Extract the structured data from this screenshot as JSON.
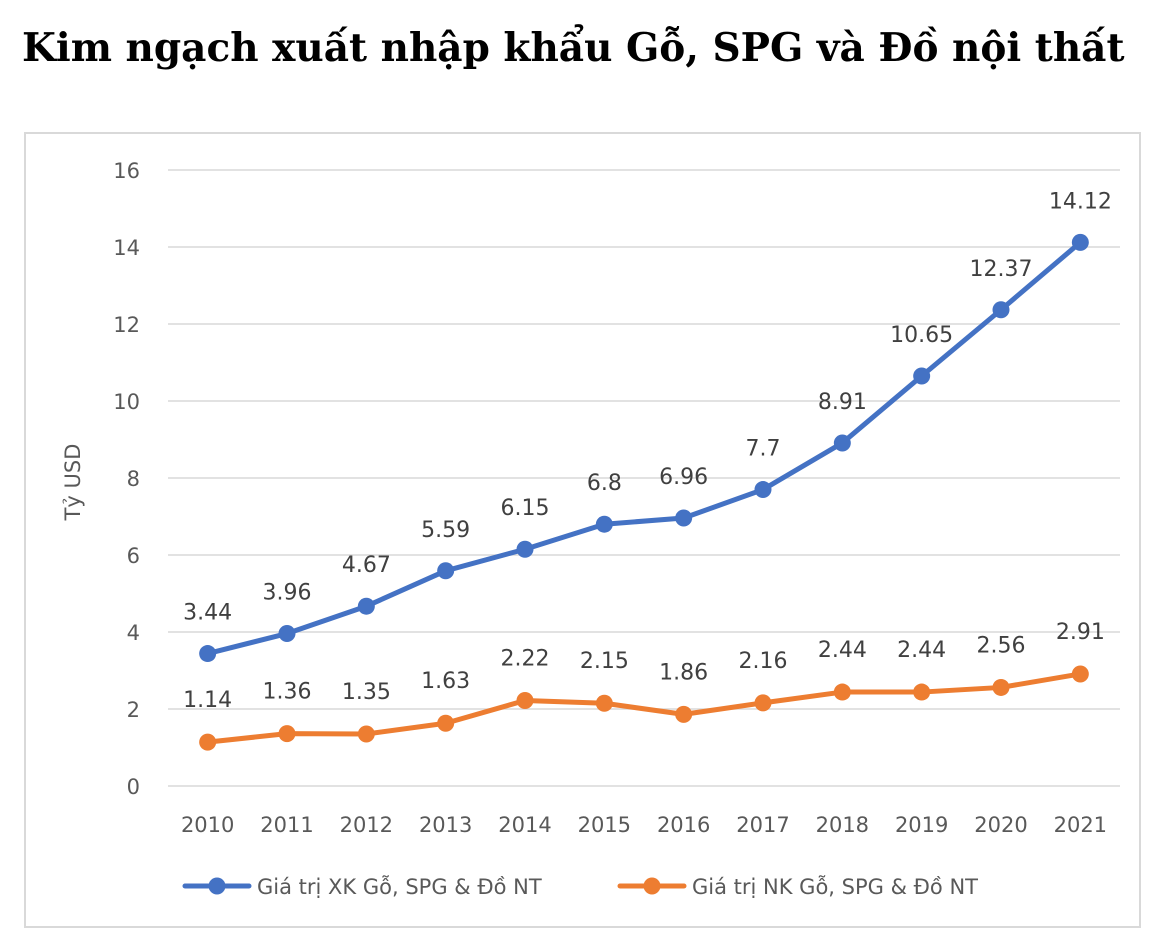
{
  "page": {
    "title": "Kim ngạch xuất nhập khẩu Gỗ, SPG và Đồ nội thất"
  },
  "chart_data": {
    "type": "line",
    "title": "",
    "xlabel": "",
    "ylabel": "Tỷ USD",
    "ylim": [
      0,
      16
    ],
    "yticks": [
      0,
      2,
      4,
      6,
      8,
      10,
      12,
      14,
      16
    ],
    "grid": true,
    "legend_position": "bottom",
    "categories": [
      "2010",
      "2011",
      "2012",
      "2013",
      "2014",
      "2015",
      "2016",
      "2017",
      "2018",
      "2019",
      "2020",
      "2021"
    ],
    "series": [
      {
        "name": "Giá trị XK Gỗ, SPG & Đồ NT",
        "color": "#4472c4",
        "values": [
          3.44,
          3.96,
          4.67,
          5.59,
          6.15,
          6.8,
          6.96,
          7.7,
          8.91,
          10.65,
          12.37,
          14.12
        ],
        "labels": [
          "3.44",
          "3.96",
          "4.67",
          "5.59",
          "6.15",
          "6.8",
          "6.96",
          "7.7",
          "8.91",
          "10.65",
          "12.37",
          "14.12"
        ]
      },
      {
        "name": "Giá trị NK Gỗ, SPG & Đồ NT",
        "color": "#ed7d31",
        "values": [
          1.14,
          1.36,
          1.35,
          1.63,
          2.22,
          2.15,
          1.86,
          2.16,
          2.44,
          2.44,
          2.56,
          2.91
        ],
        "labels": [
          "1.14",
          "1.36",
          "1.35",
          "1.63",
          "2.22",
          "2.15",
          "1.86",
          "2.16",
          "2.44",
          "2.44",
          "2.56",
          "2.91"
        ]
      }
    ]
  }
}
